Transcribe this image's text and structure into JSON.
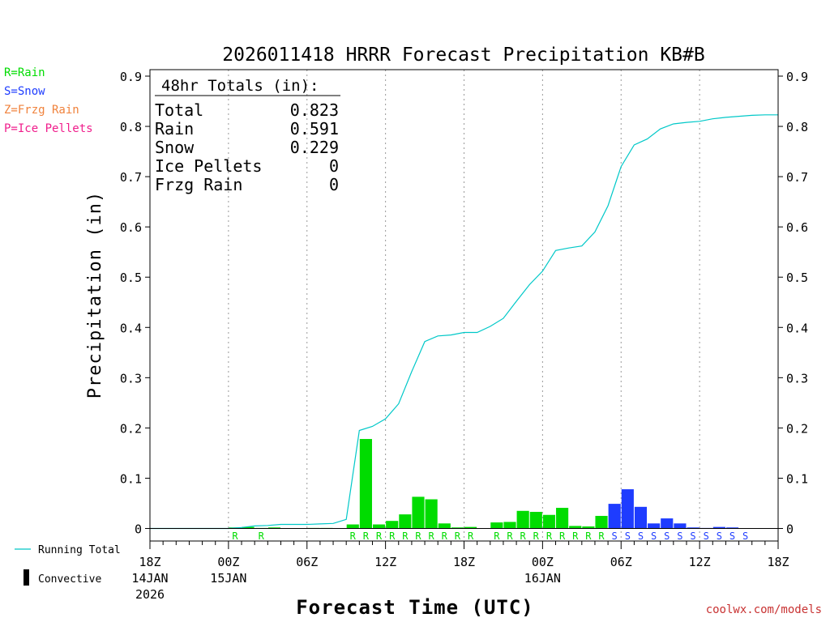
{
  "chart_data": {
    "type": "bar",
    "title": "2026011418 HRRR Forecast Precipitation KB#B",
    "xlabel": "Forecast Time (UTC)",
    "ylabel": "Precipitation (in)",
    "ylim": [
      0,
      0.9
    ],
    "y_ticks": [
      "0",
      "0.1",
      "0.2",
      "0.3",
      "0.4",
      "0.5",
      "0.6",
      "0.7",
      "0.8",
      "0.9"
    ],
    "x_ticks": [
      {
        "hour": 0,
        "label": "18Z",
        "date": "14JAN",
        "year": "2026"
      },
      {
        "hour": 6,
        "label": "00Z",
        "date": "15JAN",
        "year": ""
      },
      {
        "hour": 12,
        "label": "06Z",
        "date": "",
        "year": ""
      },
      {
        "hour": 18,
        "label": "12Z",
        "date": "",
        "year": ""
      },
      {
        "hour": 24,
        "label": "18Z",
        "date": "",
        "year": ""
      },
      {
        "hour": 30,
        "label": "00Z",
        "date": "16JAN",
        "year": ""
      },
      {
        "hour": 36,
        "label": "06Z",
        "date": "",
        "year": ""
      },
      {
        "hour": 42,
        "label": "12Z",
        "date": "",
        "year": ""
      },
      {
        "hour": 48,
        "label": "18Z",
        "date": "",
        "year": ""
      }
    ],
    "totals": {
      "header": "48hr Totals (in):",
      "rows": [
        {
          "label": "Total",
          "value": "0.823"
        },
        {
          "label": "Rain",
          "value": "0.591"
        },
        {
          "label": "Snow",
          "value": "0.229"
        },
        {
          "label": "Ice Pellets",
          "value": "0"
        },
        {
          "label": "Frzg Rain",
          "value": "0"
        }
      ]
    },
    "precip_types": [
      {
        "label": "R=Rain",
        "color": "#00dc00"
      },
      {
        "label": "S=Snow",
        "color": "#1e3cff"
      },
      {
        "label": "Z=Frzg Rain",
        "color": "#f0823c"
      },
      {
        "label": "P=Ice Pellets",
        "color": "#f01e8c"
      }
    ],
    "series_legend": [
      {
        "label": "Running Total",
        "color": "#00c8c8"
      },
      {
        "label": "Convective",
        "color": "#000000"
      }
    ],
    "hourly": {
      "hours": [
        1,
        2,
        3,
        4,
        5,
        6,
        7,
        8,
        9,
        10,
        11,
        12,
        13,
        14,
        15,
        16,
        17,
        18,
        19,
        20,
        21,
        22,
        23,
        24,
        25,
        26,
        27,
        28,
        29,
        30,
        31,
        32,
        33,
        34,
        35,
        36,
        37,
        38,
        39,
        40,
        41,
        42,
        43,
        44,
        45,
        46,
        47,
        48
      ],
      "values": [
        0,
        0,
        0,
        0,
        0,
        0,
        0.002,
        0.003,
        0.001,
        0.002,
        0,
        0,
        0.001,
        0.001,
        0,
        0.008,
        0.178,
        0.008,
        0.015,
        0.028,
        0.063,
        0.058,
        0.01,
        0.002,
        0.003,
        0,
        0.012,
        0.013,
        0.035,
        0.033,
        0.027,
        0.041,
        0.005,
        0.004,
        0.025,
        0.049,
        0.078,
        0.043,
        0.01,
        0.02,
        0.01,
        0.002,
        0.001,
        0.003,
        0.002,
        0,
        0,
        0
      ],
      "types": [
        "",
        "",
        "",
        "",
        "",
        "",
        "R",
        "",
        "R",
        "",
        "",
        "",
        "",
        "",
        "",
        "R",
        "R",
        "R",
        "R",
        "R",
        "R",
        "R",
        "R",
        "R",
        "R",
        "",
        "R",
        "R",
        "R",
        "R",
        "R",
        "R",
        "R",
        "R",
        "R",
        "S",
        "S",
        "S",
        "S",
        "S",
        "S",
        "S",
        "S",
        "S",
        "S",
        "S",
        "",
        ""
      ]
    },
    "running_total": [
      0,
      0,
      0,
      0,
      0,
      0,
      0,
      0.002,
      0.005,
      0.006,
      0.008,
      0.008,
      0.008,
      0.009,
      0.01,
      0.018,
      0.195,
      0.203,
      0.218,
      0.248,
      0.312,
      0.372,
      0.383,
      0.385,
      0.39,
      0.39,
      0.402,
      0.418,
      0.452,
      0.485,
      0.512,
      0.553,
      0.558,
      0.562,
      0.59,
      0.642,
      0.72,
      0.763,
      0.775,
      0.795,
      0.805,
      0.808,
      0.81,
      0.815,
      0.818,
      0.82,
      0.822,
      0.823,
      0.823
    ],
    "branding": "coolwx.com/models"
  }
}
